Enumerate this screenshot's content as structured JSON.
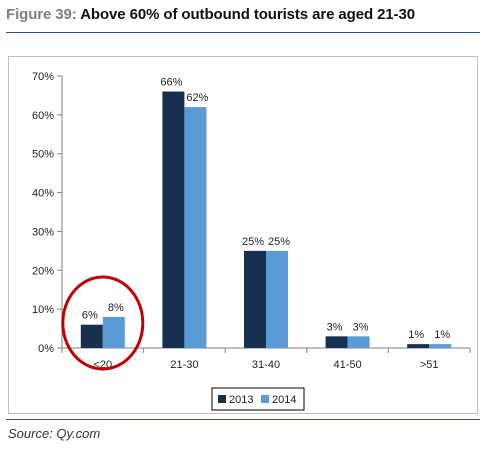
{
  "figure": {
    "number": "Figure 39:",
    "title": "Above 60% of outbound tourists are aged 21-30"
  },
  "source": "Source: Qy.com",
  "colors": {
    "series_2013": "#17304f",
    "series_2014": "#5b9bd5",
    "highlight_circle": "#c00000",
    "axis": "#808080",
    "rule": "#2f4f8f"
  },
  "chart_data": {
    "type": "bar",
    "title": "Above 60% of outbound tourists are aged 21-30",
    "categories": [
      "<20",
      "21-30",
      "31-40",
      "41-50",
      ">51"
    ],
    "series": [
      {
        "name": "2013",
        "values": [
          6,
          66,
          25,
          3,
          1
        ],
        "labels": [
          "6%",
          "66%",
          "25%",
          "3%",
          "1%"
        ]
      },
      {
        "name": "2014",
        "values": [
          8,
          62,
          25,
          3,
          1
        ],
        "labels": [
          "8%",
          "62%",
          "25%",
          "3%",
          "1%"
        ]
      }
    ],
    "yticks": [
      "0%",
      "10%",
      "20%",
      "30%",
      "40%",
      "50%",
      "60%",
      "70%"
    ],
    "ylim": [
      0,
      70
    ],
    "xlabel": "",
    "ylabel": "",
    "grid": false,
    "legend": "bottom-center",
    "highlighted_category": "<20"
  }
}
